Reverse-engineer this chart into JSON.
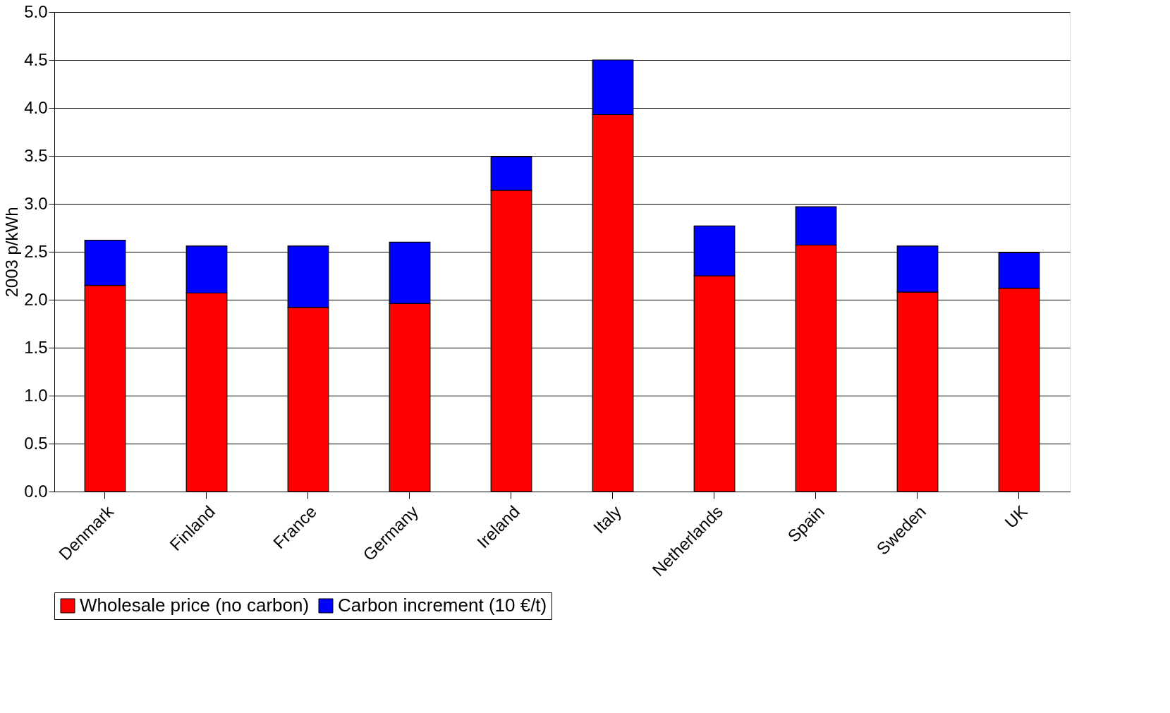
{
  "chart_data": {
    "type": "bar",
    "stacked": true,
    "ylabel": "2003 p/kWh",
    "categories": [
      "Denmark",
      "Finland",
      "France",
      "Germany",
      "Ireland",
      "Italy",
      "Netherlands",
      "Spain",
      "Sweden",
      "UK"
    ],
    "series": [
      {
        "name": "Wholesale price (no carbon)",
        "color": "#ff0000",
        "values": [
          2.15,
          2.07,
          1.92,
          1.96,
          3.14,
          3.93,
          2.25,
          2.57,
          2.08,
          2.12
        ]
      },
      {
        "name": "Carbon increment (10 €/t)",
        "color": "#0000ff",
        "values": [
          0.47,
          0.49,
          0.64,
          0.64,
          0.35,
          0.57,
          0.52,
          0.4,
          0.48,
          0.37
        ]
      }
    ],
    "ylim": [
      0,
      5
    ],
    "yticks": [
      {
        "value": 0,
        "label": "0.0"
      },
      {
        "value": 0.5,
        "label": "0.5"
      },
      {
        "value": 1,
        "label": "1.0"
      },
      {
        "value": 1.5,
        "label": "1.5"
      },
      {
        "value": 2,
        "label": "2.0"
      },
      {
        "value": 2.5,
        "label": "2.5"
      },
      {
        "value": 3,
        "label": "3.0"
      },
      {
        "value": 3.5,
        "label": "3.5"
      },
      {
        "value": 4,
        "label": "4.0"
      },
      {
        "value": 4.5,
        "label": "4.5"
      },
      {
        "value": 5,
        "label": "5.0"
      }
    ],
    "grid": "y",
    "legend": "bottom"
  }
}
